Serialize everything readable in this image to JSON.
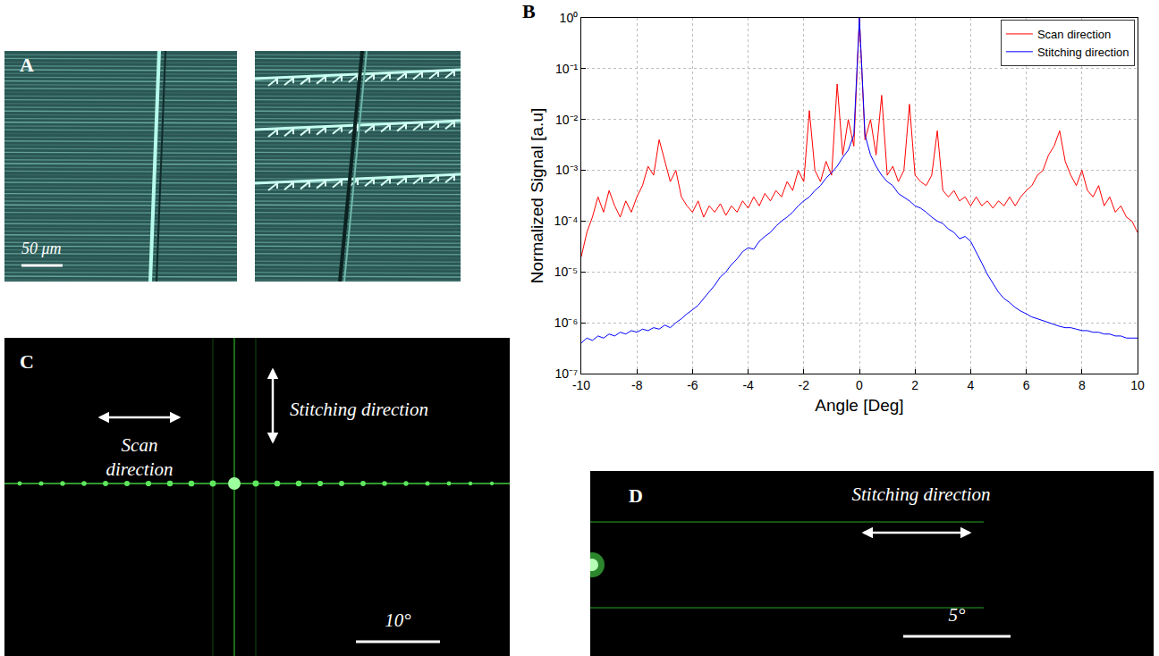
{
  "chart_data": {
    "type": "line",
    "xlabel": "Angle [Deg]",
    "ylabel": "Normalized Signal [a.u]",
    "x": [
      -10,
      -9.8,
      -9.6,
      -9.4,
      -9.2,
      -9,
      -8.8,
      -8.6,
      -8.4,
      -8.2,
      -8,
      -7.8,
      -7.6,
      -7.4,
      -7.2,
      -7,
      -6.8,
      -6.6,
      -6.4,
      -6.2,
      -6,
      -5.8,
      -5.6,
      -5.4,
      -5.2,
      -5,
      -4.8,
      -4.6,
      -4.4,
      -4.2,
      -4,
      -3.8,
      -3.6,
      -3.4,
      -3.2,
      -3,
      -2.8,
      -2.6,
      -2.4,
      -2.2,
      -2,
      -1.8,
      -1.6,
      -1.4,
      -1.2,
      -1,
      -0.8,
      -0.6,
      -0.4,
      -0.2,
      0,
      0.2,
      0.4,
      0.6,
      0.8,
      1,
      1.2,
      1.4,
      1.6,
      1.8,
      2,
      2.2,
      2.4,
      2.6,
      2.8,
      3,
      3.2,
      3.4,
      3.6,
      3.8,
      4,
      4.2,
      4.4,
      4.6,
      4.8,
      5,
      5.2,
      5.4,
      5.6,
      5.8,
      6,
      6.2,
      6.4,
      6.6,
      6.8,
      7,
      7.2,
      7.4,
      7.6,
      7.8,
      8,
      8.2,
      8.4,
      8.6,
      8.8,
      9,
      9.2,
      9.4,
      9.6,
      9.8,
      10
    ],
    "series": [
      {
        "name": "Scan direction",
        "color": "#ff0000",
        "values": [
          2e-05,
          6e-05,
          0.00012,
          0.0003,
          0.00015,
          0.0004,
          0.0002,
          0.00012,
          0.00025,
          0.00015,
          0.0003,
          0.0005,
          0.0012,
          0.0008,
          0.004,
          0.0015,
          0.0006,
          0.001,
          0.0003,
          0.0002,
          0.00015,
          0.00025,
          0.00012,
          0.0002,
          0.00015,
          0.00022,
          0.00013,
          0.0002,
          0.00015,
          0.00025,
          0.00018,
          0.0003,
          0.0002,
          0.00035,
          0.00025,
          0.0004,
          0.0003,
          0.0006,
          0.0004,
          0.001,
          0.0006,
          0.015,
          0.001,
          0.0006,
          0.0015,
          0.0008,
          0.05,
          0.002,
          0.01,
          0.003,
          1,
          0.004,
          0.01,
          0.002,
          0.03,
          0.0008,
          0.0012,
          0.0006,
          0.001,
          0.02,
          0.0008,
          0.0006,
          0.0005,
          0.0008,
          0.006,
          0.0004,
          0.0003,
          0.0004,
          0.00025,
          0.0003,
          0.0002,
          0.0003,
          0.0002,
          0.00025,
          0.00018,
          0.00025,
          0.0002,
          0.0003,
          0.0002,
          0.0003,
          0.0004,
          0.0005,
          0.0008,
          0.001,
          0.002,
          0.003,
          0.006,
          0.0015,
          0.0008,
          0.0005,
          0.001,
          0.0004,
          0.0003,
          0.0005,
          0.0002,
          0.0003,
          0.00015,
          0.0002,
          0.00012,
          0.0001,
          6e-05
        ]
      },
      {
        "name": "Stitching direction",
        "color": "#0000ff",
        "values": [
          4e-07,
          5e-07,
          4.5e-07,
          5.5e-07,
          5e-07,
          6e-07,
          5.5e-07,
          6.5e-07,
          6e-07,
          7e-07,
          6.5e-07,
          7.5e-07,
          7e-07,
          8e-07,
          7.5e-07,
          9e-07,
          8e-07,
          1e-06,
          1.2e-06,
          1.5e-06,
          1.8e-06,
          2.2e-06,
          3e-06,
          4e-06,
          5.5e-06,
          8e-06,
          1e-05,
          1.4e-05,
          1.8e-05,
          2.5e-05,
          3e-05,
          2.8e-05,
          4e-05,
          5e-05,
          6e-05,
          8e-05,
          0.0001,
          0.00012,
          0.00015,
          0.0002,
          0.00025,
          0.0003,
          0.0004,
          0.0005,
          0.0007,
          0.0009,
          0.0012,
          0.0018,
          0.0025,
          0.005,
          1,
          0.005,
          0.002,
          0.0012,
          0.0008,
          0.0006,
          0.0005,
          0.00035,
          0.0003,
          0.00025,
          0.0002,
          0.00018,
          0.00015,
          0.00012,
          0.0001,
          9e-05,
          7e-05,
          6e-05,
          4.5e-05,
          5e-05,
          4e-05,
          2.5e-05,
          1.5e-05,
          9e-06,
          6e-06,
          4e-06,
          3e-06,
          2.5e-06,
          2e-06,
          1.7e-06,
          1.5e-06,
          1.3e-06,
          1.2e-06,
          1.1e-06,
          1e-06,
          9e-07,
          8.5e-07,
          8e-07,
          8e-07,
          7.5e-07,
          7e-07,
          7e-07,
          6.5e-07,
          6.5e-07,
          6e-07,
          6e-07,
          5.5e-07,
          5.5e-07,
          5e-07,
          5e-07,
          5e-07
        ]
      }
    ],
    "xlim": [
      -10,
      10
    ],
    "xticks": [
      -10,
      -8,
      -6,
      -4,
      -2,
      0,
      2,
      4,
      6,
      8,
      10
    ],
    "ylim": [
      1e-07,
      1
    ],
    "yticks": [
      {
        "value": 1e-07,
        "label": "10⁻⁷"
      },
      {
        "value": 1e-06,
        "label": "10⁻⁶"
      },
      {
        "value": 1e-05,
        "label": "10⁻⁵"
      },
      {
        "value": 0.0001,
        "label": "10⁻⁴"
      },
      {
        "value": 0.001,
        "label": "10⁻³"
      },
      {
        "value": 0.01,
        "label": "10⁻²"
      },
      {
        "value": 0.1,
        "label": "10⁻¹"
      },
      {
        "value": 1,
        "label": "10⁰"
      }
    ],
    "log": "y",
    "grid": true,
    "legend": "upper right"
  },
  "panels": {
    "A": {
      "label": "A",
      "scale_bar": "50 μm"
    },
    "B": {
      "label": "B"
    },
    "C": {
      "label": "C",
      "vertical_arrow": "Stitching direction",
      "horizontal_arrow": "Scan direction",
      "scale_bar": "10°"
    },
    "D": {
      "label": "D",
      "arrow": "Stitching direction",
      "scale_bar": "5°"
    }
  }
}
